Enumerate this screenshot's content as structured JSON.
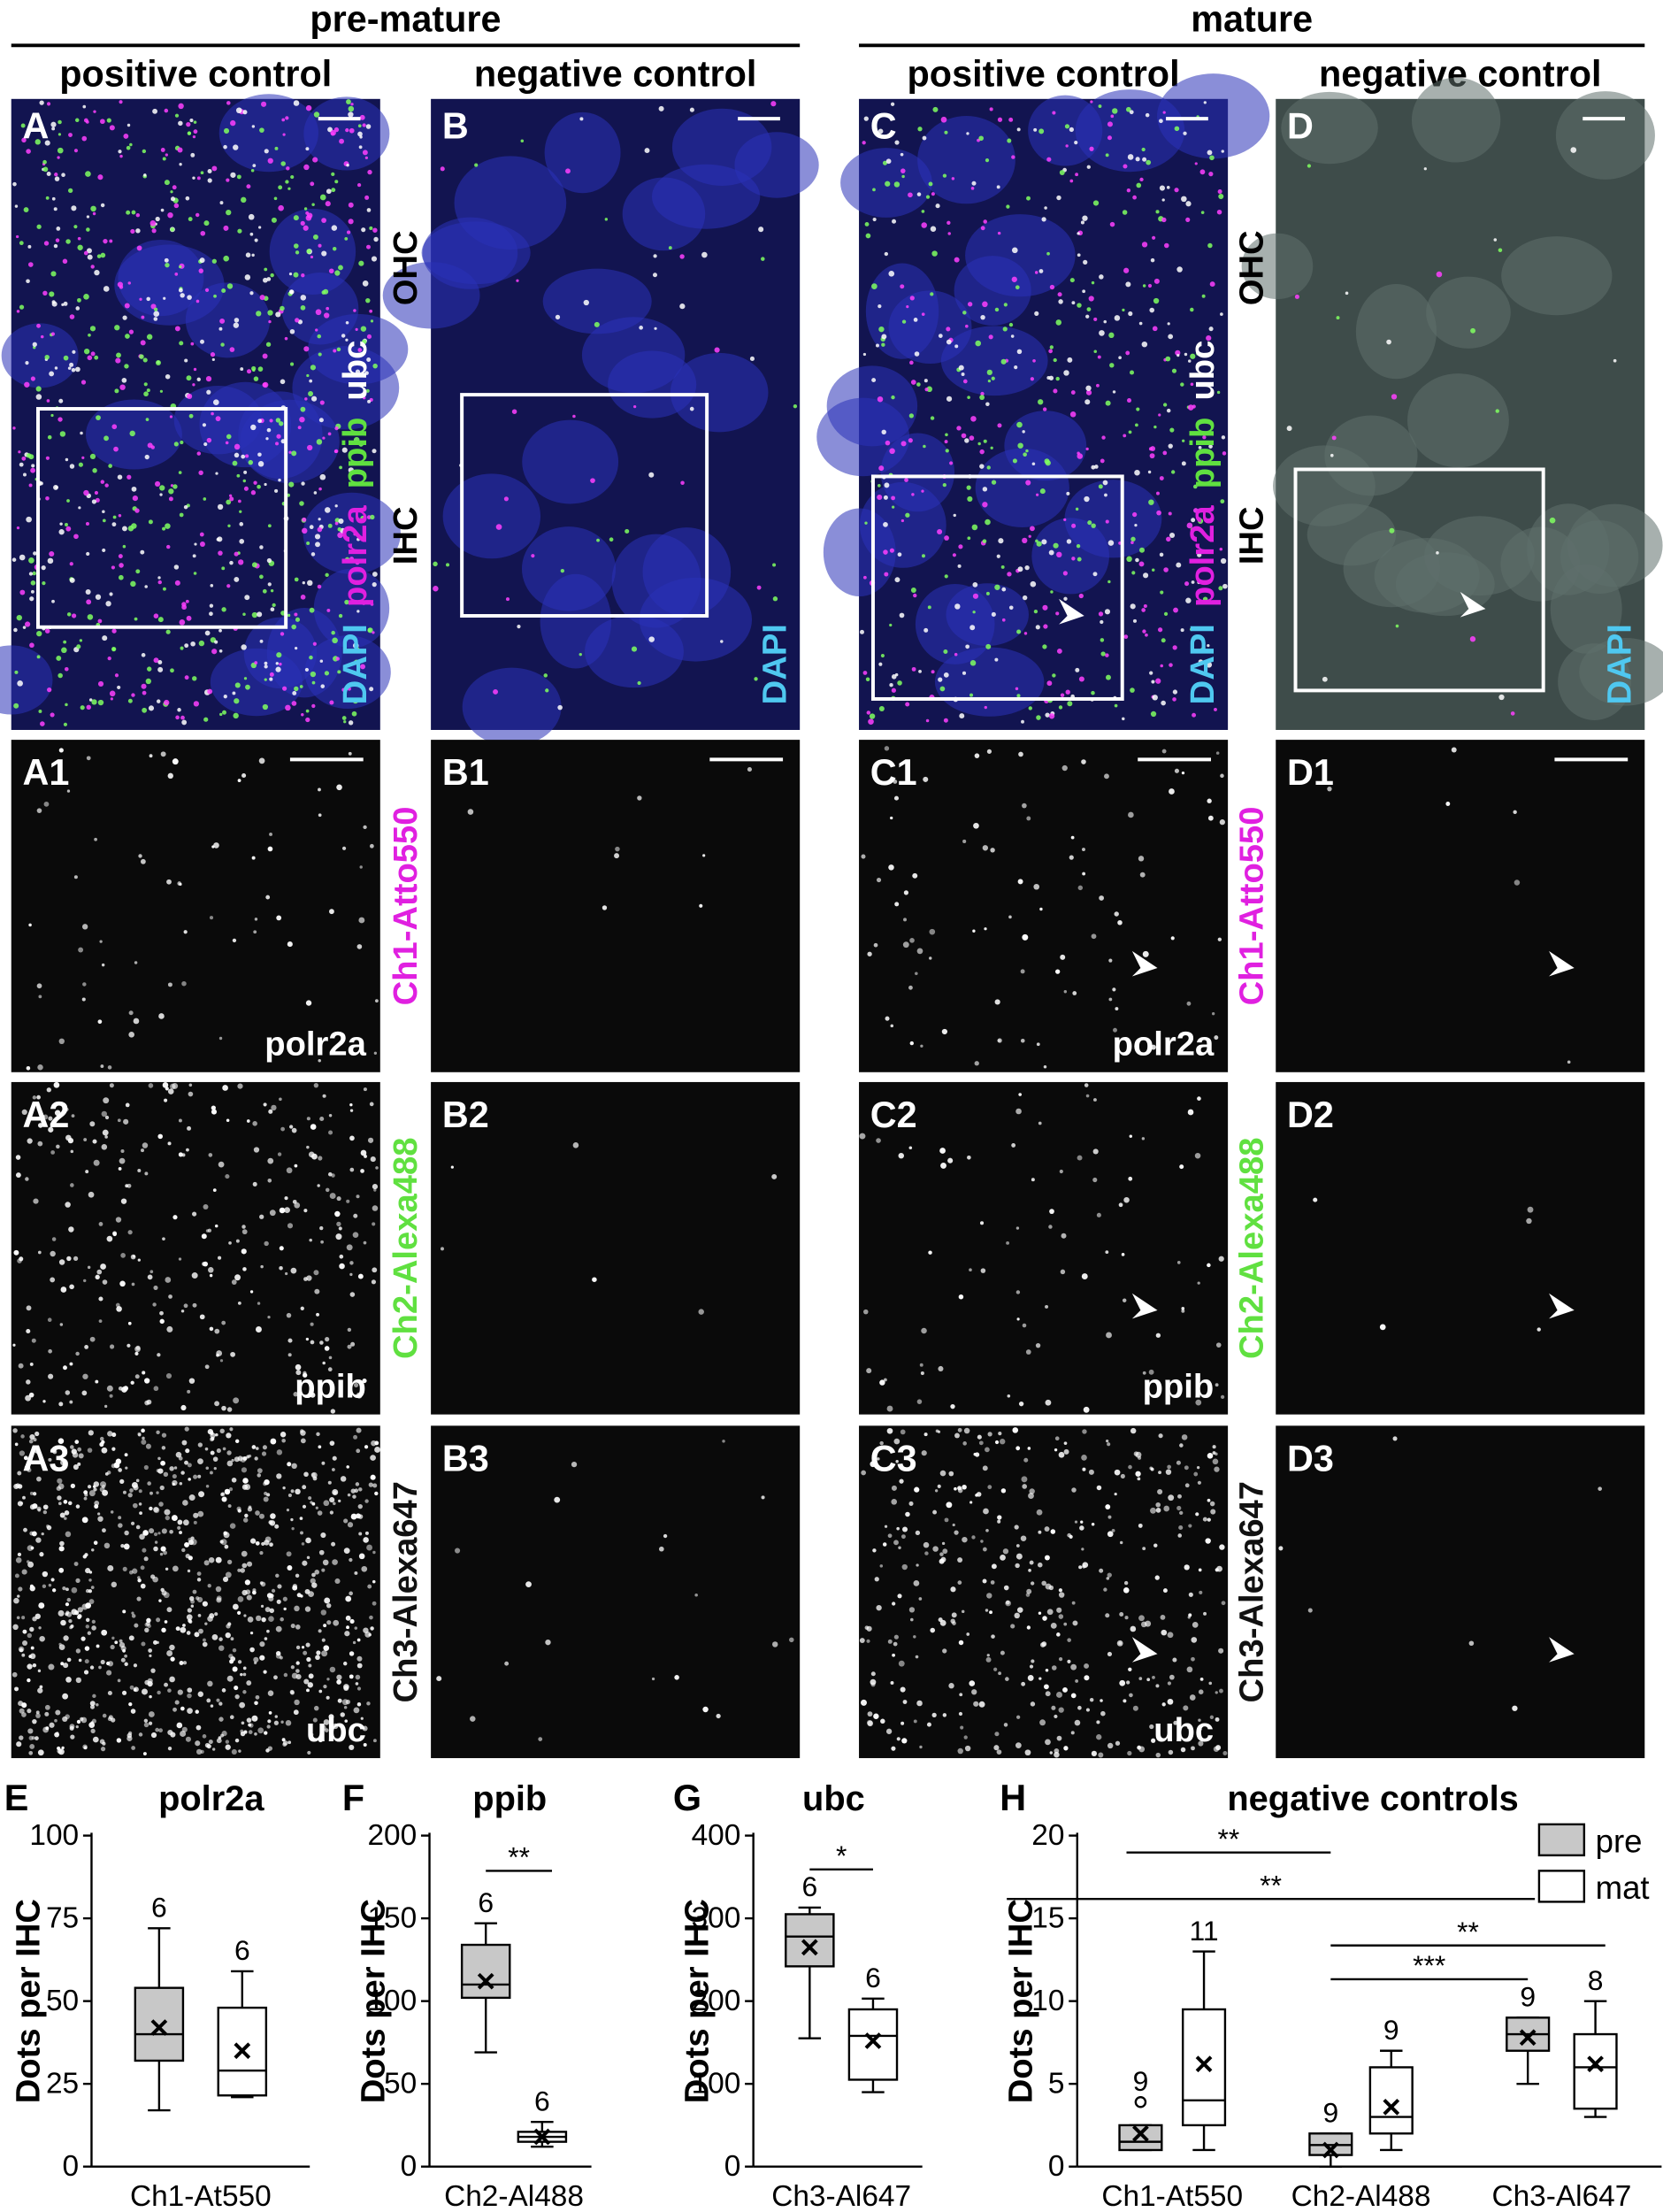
{
  "figure": {
    "groups": [
      "pre-mature",
      "mature"
    ],
    "columns": [
      "positive control",
      "negative control",
      "positive control",
      "negative control"
    ],
    "overview": {
      "panels": [
        "A",
        "B",
        "C",
        "D"
      ],
      "regions": [
        "OHC",
        "IHC"
      ],
      "stains": [
        {
          "text": "DAPI",
          "color": "#4fc8f0"
        },
        {
          "text": "polr2a",
          "color": "#e020e0"
        },
        {
          "text": "ppib",
          "color": "#60e040"
        },
        {
          "text": "ubc",
          "color": "#ffffff"
        }
      ]
    },
    "channels": [
      {
        "label": "Ch1-Atto550",
        "color": "#e020e0",
        "gene": "polr2a",
        "panels": [
          "A1",
          "B1",
          "C1",
          "D1"
        ]
      },
      {
        "label": "Ch2-Alexa488",
        "color": "#60e040",
        "gene": "ppib",
        "panels": [
          "A2",
          "B2",
          "C2",
          "D2"
        ]
      },
      {
        "label": "Ch3-Alexa647",
        "color": "#111111",
        "gene": "ubc",
        "panels": [
          "A3",
          "B3",
          "C3",
          "D3"
        ]
      }
    ]
  },
  "chart_data": [
    {
      "type": "box",
      "panel": "E",
      "title": "polr2a",
      "ylabel": "Dots per IHC",
      "categories": [
        "Ch1-At550"
      ],
      "ylim": [
        0,
        100
      ],
      "yticks": [
        0,
        25,
        50,
        75,
        100
      ],
      "annotations": [],
      "series": [
        {
          "color": "#c8c8c8",
          "values": [
            {
              "whisker_low": 17,
              "q1": 32,
              "median": 40,
              "q3": 54,
              "whisker_high": 72,
              "mean": 42,
              "n": 6
            }
          ]
        },
        {
          "color": "#ffffff",
          "values": [
            {
              "whisker_low": 21,
              "q1": 21.5,
              "median": 29,
              "q3": 48,
              "whisker_high": 59,
              "mean": 35,
              "n": 6
            }
          ]
        }
      ]
    },
    {
      "type": "box",
      "panel": "F",
      "title": "ppib",
      "ylabel": "Dots per IHC",
      "categories": [
        "Ch2-Al488"
      ],
      "ylim": [
        0,
        200
      ],
      "yticks": [
        0,
        50,
        100,
        150,
        200
      ],
      "annotations": [
        "**"
      ],
      "series": [
        {
          "color": "#c8c8c8",
          "values": [
            {
              "whisker_low": 69,
              "q1": 102,
              "median": 110,
              "q3": 134,
              "whisker_high": 147,
              "mean": 112,
              "n": 6
            }
          ]
        },
        {
          "color": "#ffffff",
          "values": [
            {
              "whisker_low": 12,
              "q1": 15,
              "median": 18,
              "q3": 21,
              "whisker_high": 27,
              "mean": 18,
              "n": 6
            }
          ]
        }
      ]
    },
    {
      "type": "box",
      "panel": "G",
      "title": "ubc",
      "ylabel": "Dots per IHC",
      "categories": [
        "Ch3-Al647"
      ],
      "ylim": [
        0,
        400
      ],
      "yticks": [
        0,
        100,
        200,
        300,
        400
      ],
      "annotations": [
        "*"
      ],
      "series": [
        {
          "color": "#c8c8c8",
          "values": [
            {
              "whisker_low": 155,
              "q1": 242,
              "median": 278,
              "q3": 305,
              "whisker_high": 313,
              "mean": 265,
              "n": 6
            }
          ]
        },
        {
          "color": "#ffffff",
          "values": [
            {
              "whisker_low": 90,
              "q1": 105,
              "median": 158,
              "q3": 190,
              "whisker_high": 203,
              "mean": 152,
              "n": 6
            }
          ]
        }
      ]
    },
    {
      "type": "box",
      "panel": "H",
      "title": "negative controls",
      "ylabel": "Dots per IHC",
      "categories": [
        "Ch1-At550",
        "Ch2-Al488",
        "Ch3-Al647"
      ],
      "ylim": [
        0,
        20
      ],
      "yticks": [
        0,
        5,
        10,
        15,
        20
      ],
      "annotations": [
        "**",
        "**",
        "**",
        "***"
      ],
      "legend": "upper right",
      "series": [
        {
          "name": "pre",
          "color": "#c8c8c8",
          "values": [
            {
              "whisker_low": 1,
              "q1": 1,
              "median": 1.5,
              "q3": 2.5,
              "whisker_high": 2.5,
              "mean": 2,
              "n": 9,
              "outliers": [
                3.9
              ]
            },
            {
              "whisker_low": 0,
              "q1": 0.7,
              "median": 1.3,
              "q3": 2,
              "whisker_high": 2,
              "mean": 1,
              "n": 9
            },
            {
              "whisker_low": 5,
              "q1": 7,
              "median": 8,
              "q3": 9,
              "whisker_high": 9,
              "mean": 7.8,
              "n": 9
            }
          ]
        },
        {
          "name": "mat",
          "color": "#ffffff",
          "values": [
            {
              "whisker_low": 1,
              "q1": 2.5,
              "median": 4,
              "q3": 9.5,
              "whisker_high": 13,
              "mean": 6.2,
              "n": 11
            },
            {
              "whisker_low": 1,
              "q1": 2,
              "median": 3,
              "q3": 6,
              "whisker_high": 7,
              "mean": 3.6,
              "n": 9
            },
            {
              "whisker_low": 3,
              "q1": 3.5,
              "median": 6,
              "q3": 8,
              "whisker_high": 10,
              "mean": 6.2,
              "n": 8
            }
          ]
        }
      ]
    }
  ]
}
